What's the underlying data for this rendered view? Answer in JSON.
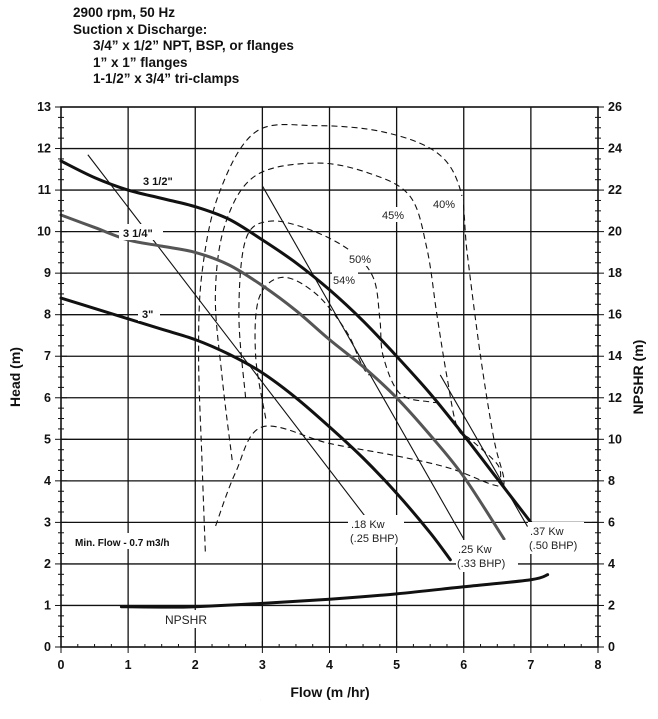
{
  "header": {
    "line1": "2900 rpm, 50 Hz",
    "line2": "Suction x Discharge:",
    "line3": "3/4” x 1/2” NPT, BSP, or flanges",
    "line4": "1” x 1” flanges",
    "line5": "1-1/2” x 3/4” tri-clamps"
  },
  "chart_data": {
    "type": "line",
    "title": "2900 rpm, 50 Hz pump performance curve",
    "xlabel": "Flow (m /hr)",
    "ylabel": "Head (m)",
    "y2label": "NPSHR (m)",
    "xlim": [
      0,
      8
    ],
    "ylim": [
      0,
      13
    ],
    "y2lim": [
      0,
      26
    ],
    "x_ticks": [
      "0",
      "1",
      "2",
      "3",
      "4",
      "5",
      "6",
      "7",
      "8"
    ],
    "y_ticks": [
      "0",
      "1",
      "2",
      "3",
      "4",
      "5",
      "6",
      "7",
      "8",
      "9",
      "10",
      "11",
      "12",
      "13"
    ],
    "y2_ticks": [
      "0",
      "2",
      "4",
      "6",
      "8",
      "10",
      "12",
      "14",
      "16",
      "18",
      "20",
      "22",
      "24",
      "26"
    ],
    "grid": true,
    "series": [
      {
        "name": "3 1/2\"",
        "label": "3 1/2\"",
        "color": "#111111",
        "x": [
          0,
          0.5,
          1,
          1.5,
          2,
          2.5,
          3,
          3.5,
          4,
          4.5,
          5,
          5.5,
          6,
          6.5,
          7
        ],
        "y": [
          11.7,
          11.3,
          11.0,
          10.8,
          10.6,
          10.3,
          9.8,
          9.25,
          8.6,
          7.85,
          7.0,
          6.1,
          5.1,
          4.05,
          3.0
        ]
      },
      {
        "name": "3 1/4\"",
        "label": "3 1/4\"",
        "color": "#555555",
        "x": [
          0,
          0.5,
          1,
          1.5,
          2,
          2.5,
          3,
          3.5,
          4,
          4.5,
          5,
          5.5,
          6,
          6.6
        ],
        "y": [
          10.4,
          10.1,
          9.8,
          9.65,
          9.5,
          9.2,
          8.7,
          8.1,
          7.4,
          6.75,
          6.0,
          5.1,
          4.1,
          2.6
        ]
      },
      {
        "name": "3\"",
        "label": "3\"",
        "color": "#111111",
        "x": [
          0,
          0.5,
          1,
          1.5,
          2,
          2.5,
          3,
          3.5,
          4,
          4.5,
          5,
          5.5,
          5.8
        ],
        "y": [
          8.4,
          8.15,
          7.9,
          7.65,
          7.4,
          7.05,
          6.6,
          6.0,
          5.3,
          4.55,
          3.7,
          2.75,
          2.1
        ]
      },
      {
        "name": "NPSHR",
        "label": "NPSHR",
        "axis": "right",
        "color": "#111111",
        "x": [
          0.9,
          1.5,
          2,
          3,
          4,
          5,
          6,
          7,
          7.25
        ],
        "y_right": [
          1.94,
          1.92,
          1.94,
          2.1,
          2.3,
          2.56,
          2.9,
          3.24,
          3.48
        ]
      }
    ],
    "efficiency_contours": [
      {
        "label": "40%"
      },
      {
        "label": "45%"
      },
      {
        "label": "50%"
      },
      {
        "label": "54%"
      }
    ],
    "power_lines": [
      {
        "label": ".18 Kw",
        "sublabel": "(.25 BHP)",
        "from": [
          0.4,
          11.85
        ],
        "to": [
          4.6,
          3.0
        ]
      },
      {
        "label": ".25 Kw",
        "sublabel": "(.33 BHP)",
        "from": [
          3.0,
          11.1
        ],
        "to": [
          6.0,
          2.6
        ]
      },
      {
        "label": ".37 Kw",
        "sublabel": "(.50 BHP)",
        "from": [
          5.65,
          6.55
        ],
        "to": [
          6.95,
          2.9
        ]
      }
    ],
    "annotations": [
      "Min. Flow - 0.7 m3/h",
      "NPSHR"
    ]
  },
  "labels": {
    "c312": "3 1/2\"",
    "c314": "3 1/4\"",
    "c3": "3\"",
    "eff40": "40%",
    "eff45": "45%",
    "eff50": "50%",
    "eff54": "54%",
    "p18a": ".18 Kw",
    "p18b": "(.25 BHP)",
    "p25a": ".25 Kw",
    "p25b": "(.33 BHP)",
    "p37a": ".37 Kw",
    "p37b": "(.50 BHP)",
    "minflow": "Min. Flow - 0.7 m3/h",
    "npshr": "NPSHR"
  }
}
